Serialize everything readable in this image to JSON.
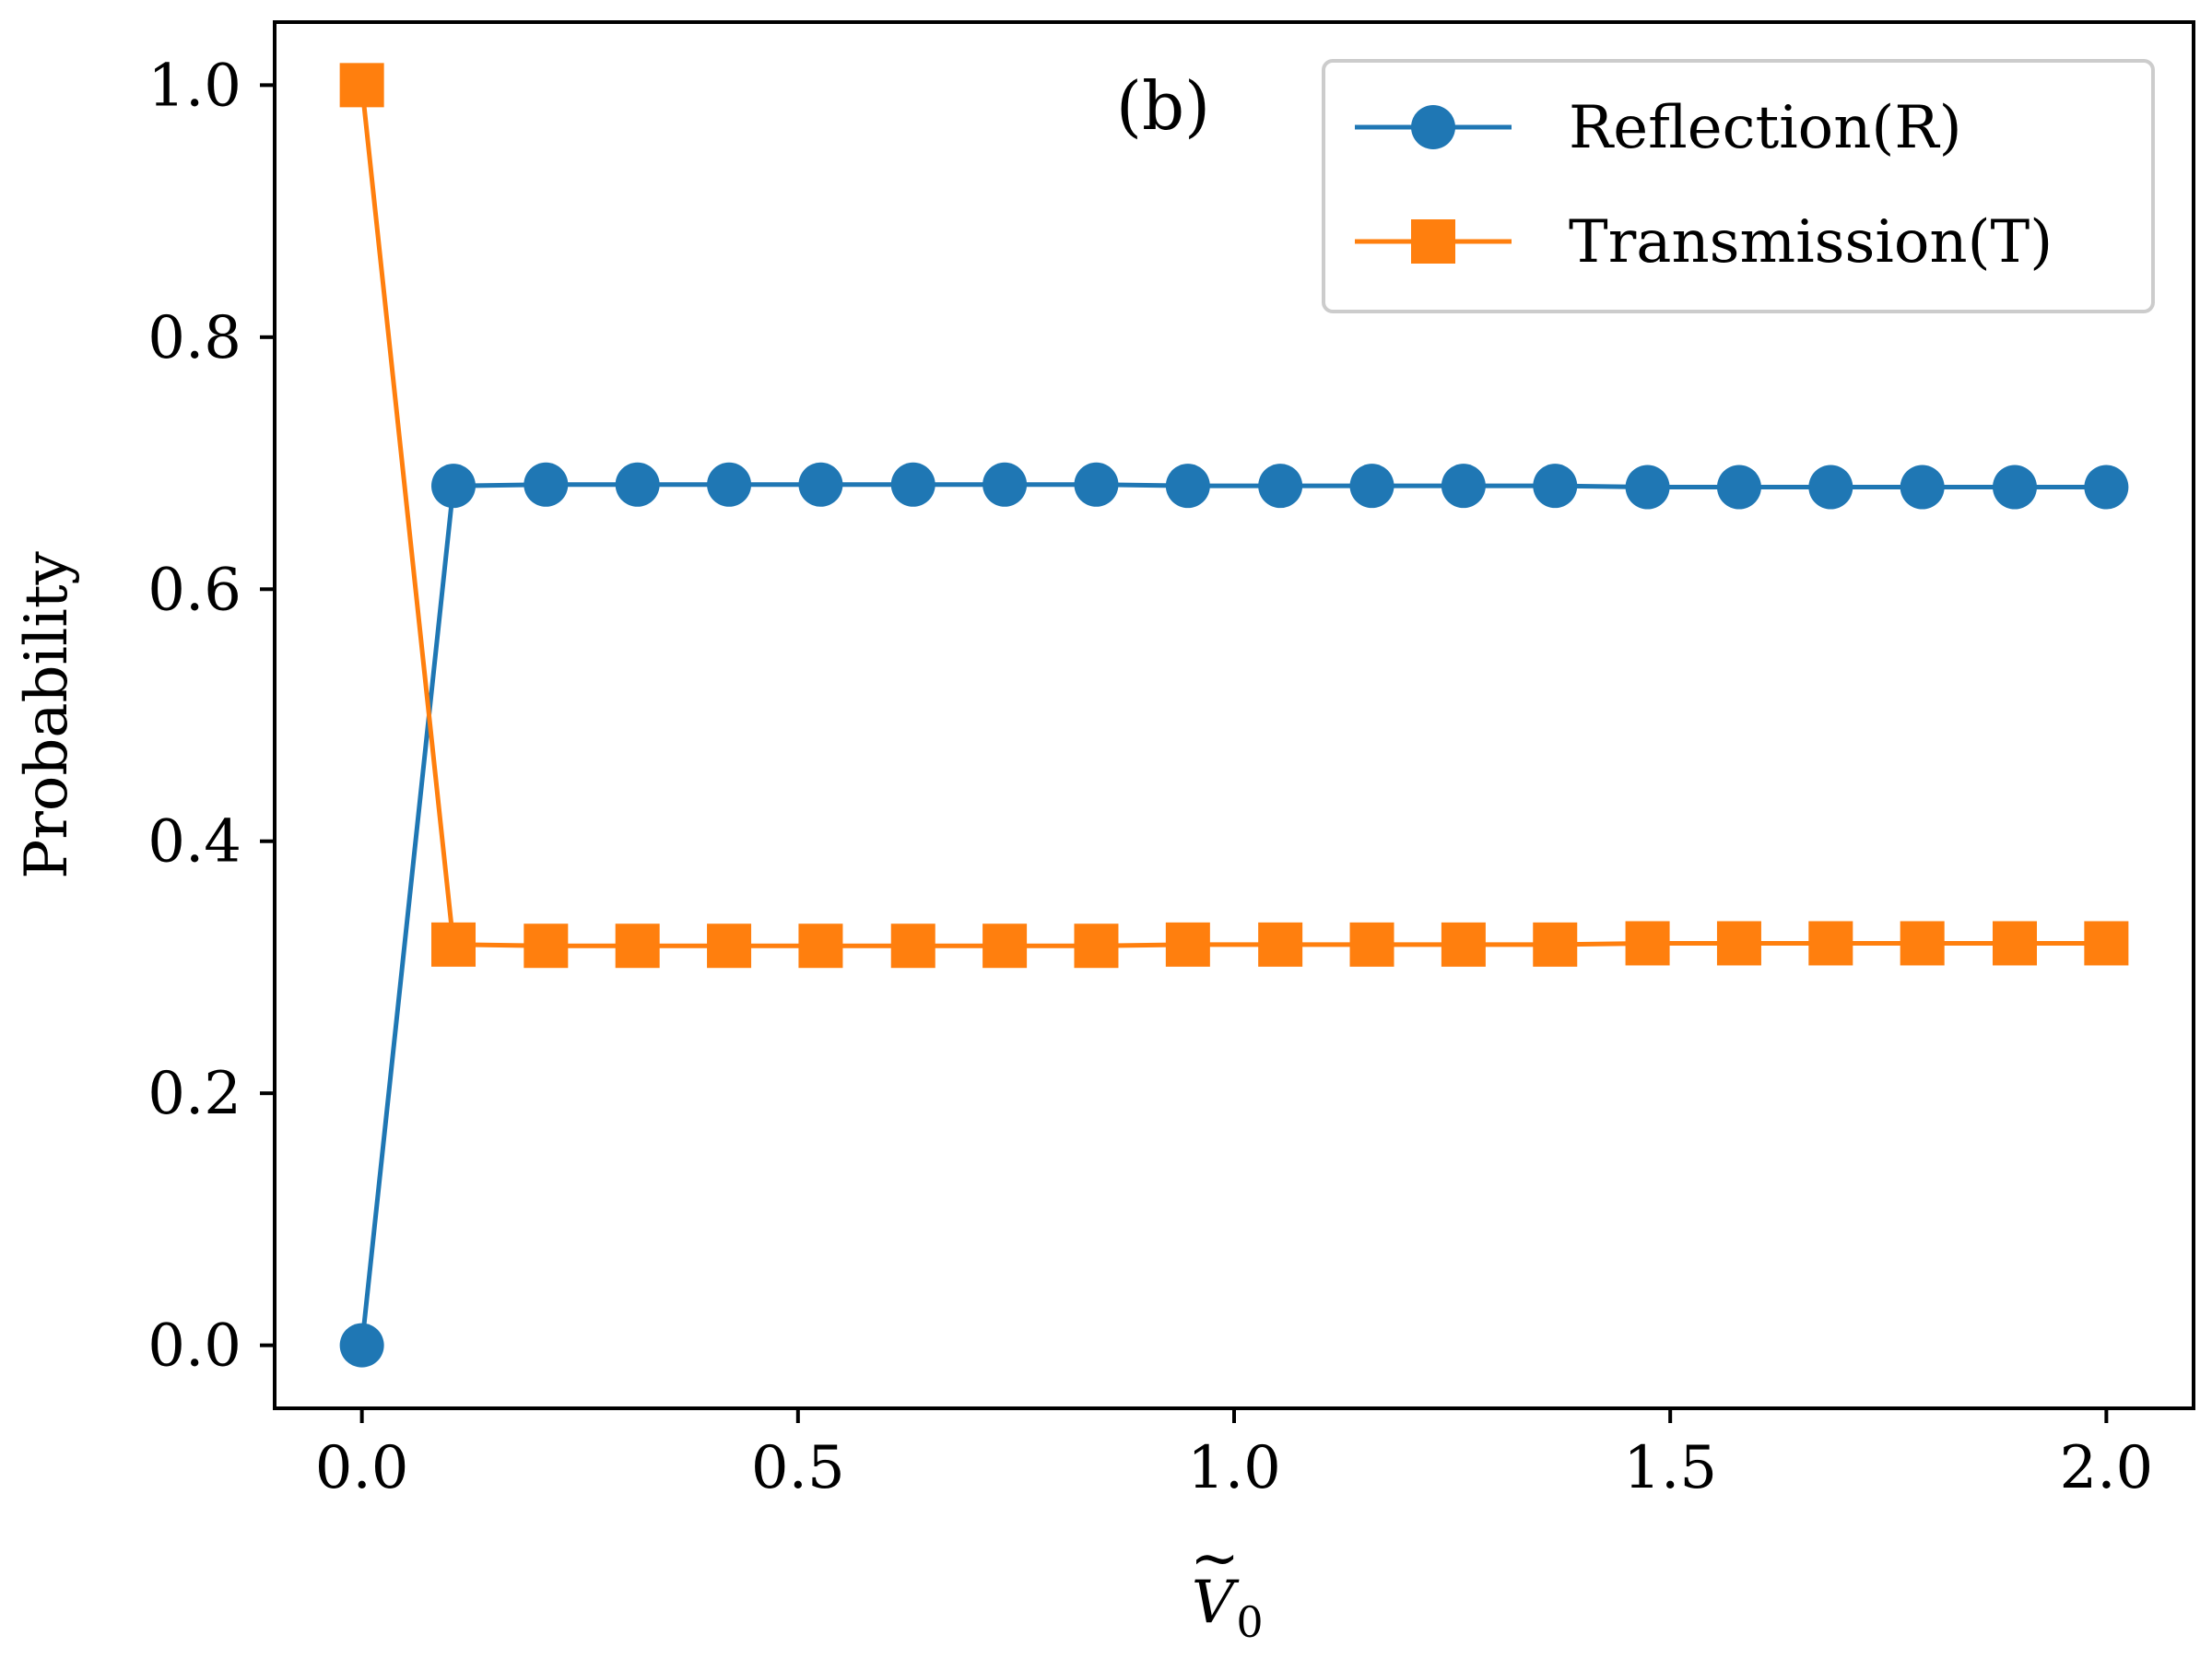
{
  "chart_data": {
    "type": "line",
    "title": "",
    "panel_label": "(b)",
    "xlabel_main": "V",
    "xlabel_accent": "~",
    "xlabel_sub": "0",
    "ylabel": "Probability",
    "xlim": [
      -0.1,
      2.1
    ],
    "ylim": [
      -0.05,
      1.05
    ],
    "xticks": [
      0.0,
      0.5,
      1.0,
      1.5,
      2.0
    ],
    "xtick_labels": [
      "0.0",
      "0.5",
      "1.0",
      "1.5",
      "2.0"
    ],
    "yticks": [
      0.0,
      0.2,
      0.4,
      0.6,
      0.8,
      1.0
    ],
    "ytick_labels": [
      "0.0",
      "0.2",
      "0.4",
      "0.6",
      "0.8",
      "1.0"
    ],
    "grid": false,
    "legend_position": "top-right",
    "x": [
      0.0,
      0.105,
      0.211,
      0.316,
      0.421,
      0.526,
      0.632,
      0.737,
      0.842,
      0.947,
      1.053,
      1.158,
      1.263,
      1.368,
      1.474,
      1.579,
      1.684,
      1.789,
      1.895,
      2.0
    ],
    "series": [
      {
        "name": "Reflection(R)",
        "color": "#1f77b4",
        "marker": "circle",
        "values": [
          0.0,
          0.682,
          0.683,
          0.683,
          0.683,
          0.683,
          0.683,
          0.683,
          0.683,
          0.682,
          0.682,
          0.682,
          0.682,
          0.682,
          0.681,
          0.681,
          0.681,
          0.681,
          0.681,
          0.681
        ]
      },
      {
        "name": "Transmission(T)",
        "color": "#ff7f0e",
        "marker": "square",
        "values": [
          1.0,
          0.318,
          0.317,
          0.317,
          0.317,
          0.317,
          0.317,
          0.317,
          0.317,
          0.318,
          0.318,
          0.318,
          0.318,
          0.318,
          0.319,
          0.319,
          0.319,
          0.319,
          0.319,
          0.319
        ]
      }
    ]
  }
}
